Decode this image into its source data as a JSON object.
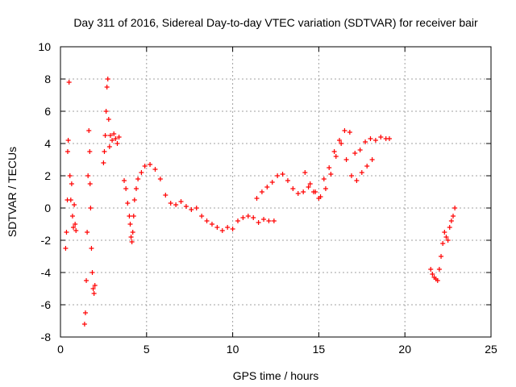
{
  "chart_data": {
    "type": "scatter",
    "title": "Day 311 of 2016, Sidereal Day-to-day VTEC variation (SDTVAR) for receiver bair",
    "xlabel": "GPS time / hours",
    "ylabel": "SDTVAR / TECUs",
    "xlim": [
      0,
      25
    ],
    "ylim": [
      -8,
      10
    ],
    "xticks": [
      0,
      5,
      10,
      15,
      20,
      25
    ],
    "yticks": [
      -8,
      -6,
      -4,
      -2,
      0,
      2,
      4,
      6,
      8,
      10
    ],
    "grid": true,
    "legend": "none",
    "marker": "+",
    "color": "#ff0000",
    "series": [
      {
        "name": "SDTVAR",
        "x": [
          0.3,
          0.35,
          0.4,
          0.42,
          0.45,
          0.5,
          0.55,
          0.6,
          0.65,
          0.7,
          0.75,
          0.8,
          0.85,
          0.9,
          1.4,
          1.45,
          1.5,
          1.55,
          1.6,
          1.65,
          1.7,
          1.72,
          1.75,
          1.8,
          1.85,
          1.9,
          1.95,
          2.0,
          2.5,
          2.55,
          2.6,
          2.65,
          2.7,
          2.75,
          2.8,
          2.85,
          2.9,
          3.0,
          3.1,
          3.2,
          3.3,
          3.4,
          3.7,
          3.8,
          3.9,
          4.0,
          4.05,
          4.1,
          4.15,
          4.2,
          4.25,
          4.3,
          4.4,
          4.5,
          4.7,
          4.9,
          5.2,
          5.5,
          5.8,
          6.1,
          6.4,
          6.7,
          7.0,
          7.3,
          7.6,
          7.9,
          8.2,
          8.5,
          8.8,
          9.1,
          9.4,
          9.7,
          10.0,
          10.3,
          10.6,
          10.9,
          11.2,
          11.5,
          11.8,
          12.1,
          12.4,
          11.4,
          11.7,
          12.0,
          12.3,
          12.6,
          12.9,
          13.2,
          13.5,
          13.8,
          14.1,
          14.4,
          14.7,
          15.0,
          15.3,
          15.6,
          15.9,
          16.2,
          16.5,
          16.8,
          17.1,
          17.4,
          17.7,
          18.0,
          18.3,
          18.6,
          18.9,
          19.1,
          14.2,
          14.5,
          14.8,
          15.1,
          15.4,
          15.7,
          16.0,
          16.3,
          16.6,
          16.9,
          17.2,
          17.5,
          17.8,
          18.1,
          21.5,
          21.6,
          21.7,
          21.8,
          21.9,
          22.0,
          22.1,
          22.2,
          22.3,
          22.4,
          22.5,
          22.6,
          22.7,
          22.8,
          22.9
        ],
        "y": [
          -2.5,
          -1.5,
          0.5,
          3.5,
          4.2,
          7.8,
          2.0,
          0.5,
          1.5,
          -0.5,
          -1.2,
          0.2,
          -1.0,
          -1.4,
          -7.2,
          -6.5,
          -4.5,
          -1.5,
          2.0,
          4.8,
          3.5,
          1.5,
          0.0,
          -2.5,
          -4.0,
          -5.0,
          -5.3,
          -4.8,
          2.8,
          3.5,
          4.5,
          6.0,
          7.5,
          8.0,
          5.5,
          3.8,
          4.5,
          4.2,
          4.6,
          4.3,
          4.0,
          4.4,
          1.7,
          1.2,
          0.3,
          -0.5,
          -1.0,
          -1.8,
          -2.1,
          -1.5,
          -0.5,
          0.5,
          1.2,
          1.8,
          2.2,
          2.6,
          2.7,
          2.4,
          1.8,
          0.8,
          0.3,
          0.2,
          0.4,
          0.1,
          -0.1,
          0.0,
          -0.5,
          -0.8,
          -1.0,
          -1.2,
          -1.4,
          -1.2,
          -1.3,
          -0.8,
          -0.6,
          -0.5,
          -0.6,
          -0.9,
          -0.7,
          -0.8,
          -0.8,
          0.6,
          1.0,
          1.3,
          1.6,
          2.0,
          2.1,
          1.7,
          1.2,
          0.9,
          1.0,
          1.3,
          1.0,
          0.6,
          1.8,
          2.5,
          3.5,
          4.2,
          4.8,
          4.7,
          3.4,
          3.6,
          4.1,
          4.3,
          4.2,
          4.4,
          4.3,
          4.3,
          2.2,
          1.5,
          1.0,
          0.7,
          1.2,
          2.1,
          3.2,
          4.0,
          3.0,
          2.0,
          1.7,
          2.2,
          2.6,
          3.0,
          -3.8,
          -4.1,
          -4.3,
          -4.4,
          -4.5,
          -3.8,
          -3.0,
          -2.2,
          -1.5,
          -1.8,
          -2.0,
          -1.2,
          -0.8,
          -0.5,
          0.0
        ]
      }
    ]
  }
}
